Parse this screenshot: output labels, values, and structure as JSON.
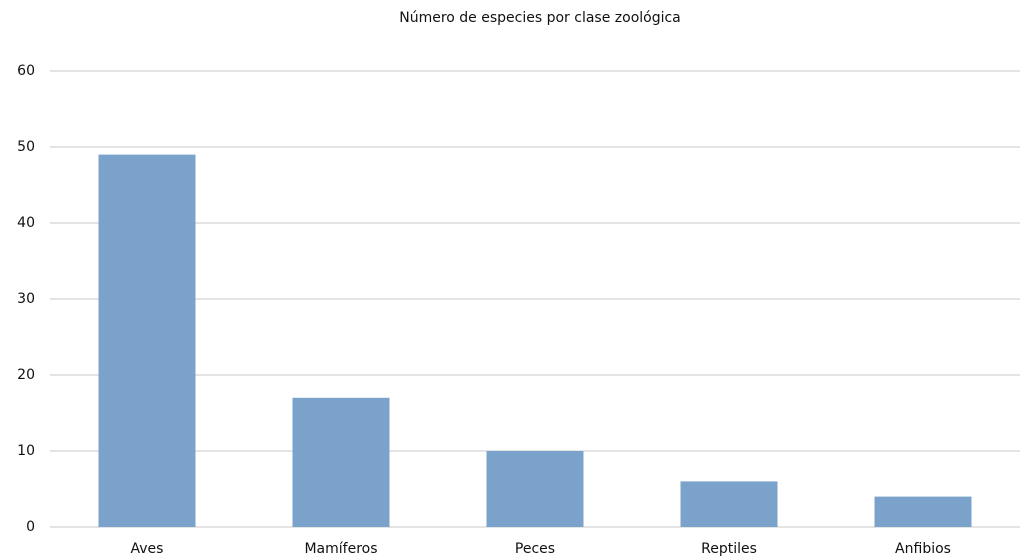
{
  "chart_data": {
    "type": "bar",
    "title": "Número de especies por clase zoológica",
    "categories": [
      "Aves",
      "Mamíferos",
      "Peces",
      "Reptiles",
      "Anfibios"
    ],
    "values": [
      49,
      17,
      10,
      6,
      4
    ],
    "color": "#7ba2cb",
    "ylim": [
      0,
      60
    ],
    "yticks": [
      0,
      10,
      20,
      30,
      40,
      50,
      60
    ],
    "grid": true
  }
}
